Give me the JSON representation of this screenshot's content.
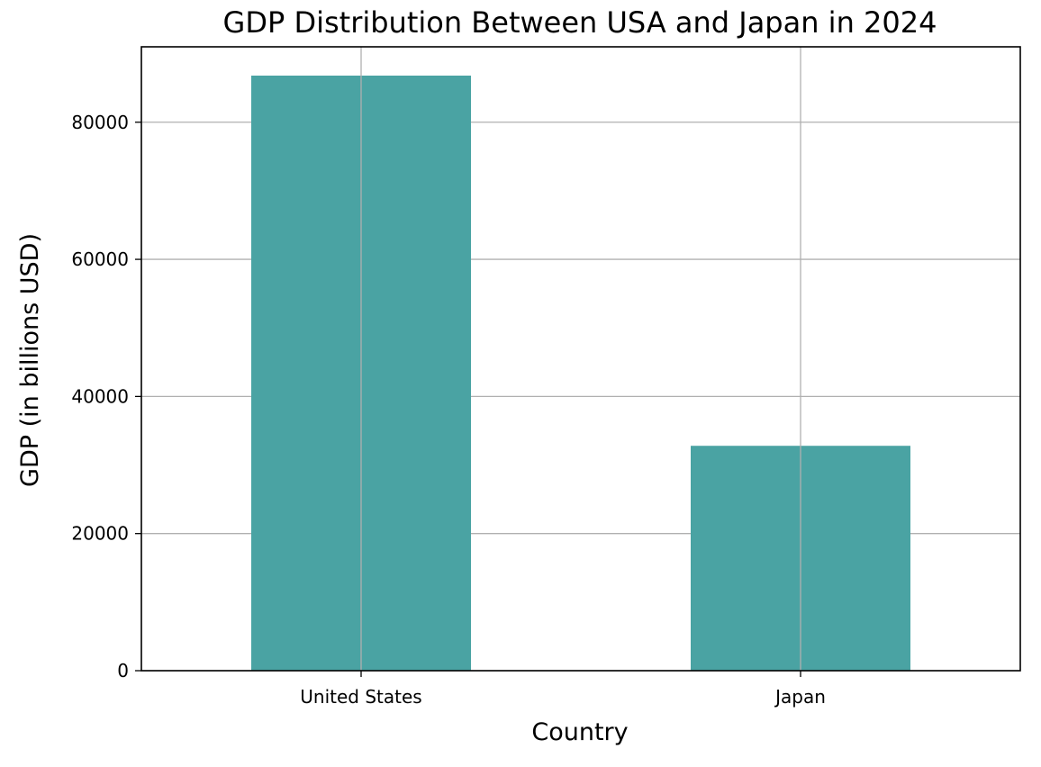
{
  "chart_data": {
    "type": "bar",
    "title": "GDP Distribution Between USA and Japan in 2024",
    "xlabel": "Country",
    "ylabel": "GDP (in billions USD)",
    "categories": [
      "United States",
      "Japan"
    ],
    "values": [
      86800,
      32800
    ],
    "ylim": [
      0,
      91000
    ],
    "yticks": [
      0,
      20000,
      40000,
      60000,
      80000
    ],
    "ytick_labels": [
      "0",
      "20000",
      "40000",
      "60000",
      "80000"
    ],
    "grid": true,
    "bar_color": "#4aa3a3"
  }
}
